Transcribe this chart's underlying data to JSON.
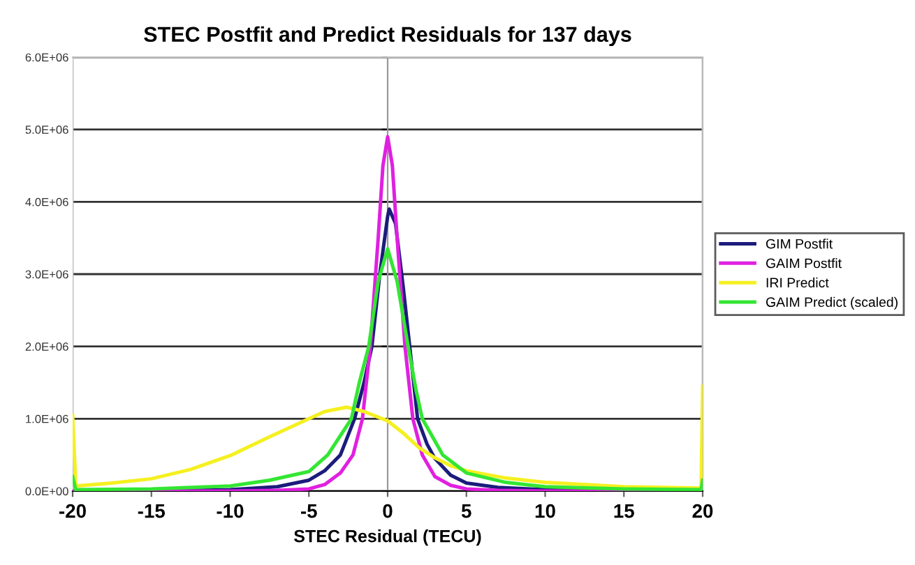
{
  "chart_data": {
    "type": "line",
    "title": "STEC Postfit and Predict Residuals for 137 days",
    "xlabel": "STEC Residual (TECU)",
    "xlim": [
      -20,
      20
    ],
    "xticks": [
      -20,
      -15,
      -10,
      -5,
      0,
      5,
      10,
      15,
      20
    ],
    "ylim": [
      0,
      6000000
    ],
    "yticks": [
      {
        "value": 0,
        "label": "0.0E+00"
      },
      {
        "value": 1000000,
        "label": "1.0E+06"
      },
      {
        "value": 2000000,
        "label": "2.0E+06"
      },
      {
        "value": 3000000,
        "label": "3.0E+06"
      },
      {
        "value": 4000000,
        "label": "4.0E+06"
      },
      {
        "value": 5000000,
        "label": "5.0E+06"
      },
      {
        "value": 6000000,
        "label": "6.0E+06"
      }
    ],
    "grid": "y",
    "legend": "right",
    "marker": "none",
    "line_style": "solid",
    "series": [
      {
        "name": "GIM Postfit",
        "color": "#1c1c7c",
        "x": [
          -20,
          -15,
          -10,
          -7,
          -5,
          -4,
          -3,
          -2.1,
          -1.5,
          -1.0,
          -0.5,
          0,
          0.1,
          0.5,
          1.0,
          1.4,
          1.9,
          2.5,
          3,
          4,
          5,
          7,
          10,
          15,
          20
        ],
        "values": [
          0,
          0,
          20000,
          60000,
          150000,
          280000,
          500000,
          1000000,
          1500000,
          2000000,
          3000000,
          3800000,
          3900000,
          3700000,
          2800000,
          2000000,
          1000000,
          650000,
          450000,
          220000,
          110000,
          50000,
          20000,
          0,
          0
        ]
      },
      {
        "name": "GAIM Postfit",
        "color": "#e020e0",
        "x": [
          -20,
          -10,
          -7,
          -5,
          -4,
          -3,
          -2.2,
          -1.6,
          -1.1,
          -0.6,
          -0.3,
          0,
          0.3,
          0.6,
          1.1,
          1.6,
          2.2,
          3,
          4,
          5,
          7,
          10,
          20
        ],
        "values": [
          0,
          0,
          10000,
          30000,
          90000,
          250000,
          500000,
          1000000,
          2000000,
          3500000,
          4500000,
          4900000,
          4500000,
          3500000,
          2000000,
          1000000,
          500000,
          200000,
          80000,
          30000,
          10000,
          0,
          0
        ]
      },
      {
        "name": "IRI Predict",
        "color": "#f5f020",
        "x": [
          -20,
          -20,
          -19.8,
          -17.5,
          -15,
          -12.5,
          -10,
          -7.5,
          -5,
          -4,
          -2.6,
          -1.5,
          0,
          1,
          2,
          3,
          4,
          5,
          7.5,
          10,
          15,
          19.9,
          20
        ],
        "values": [
          1050000,
          1050000,
          70000,
          110000,
          170000,
          300000,
          490000,
          750000,
          1000000,
          1100000,
          1160000,
          1100000,
          970000,
          800000,
          600000,
          460000,
          350000,
          280000,
          180000,
          120000,
          60000,
          40000,
          1450000
        ]
      },
      {
        "name": "GAIM Predict (scaled)",
        "color": "#33e633",
        "x": [
          -20,
          -19.8,
          -15,
          -10,
          -7.5,
          -5,
          -3.8,
          -2.3,
          -1.8,
          -1.2,
          -0.6,
          0,
          0.6,
          1.3,
          1.8,
          2.2,
          3.5,
          5,
          7.5,
          10,
          15,
          19.9,
          20
        ],
        "values": [
          200000,
          20000,
          30000,
          70000,
          150000,
          270000,
          500000,
          1000000,
          1500000,
          2000000,
          2900000,
          3350000,
          2900000,
          2000000,
          1400000,
          1000000,
          500000,
          250000,
          120000,
          60000,
          30000,
          20000,
          150000
        ]
      }
    ]
  }
}
